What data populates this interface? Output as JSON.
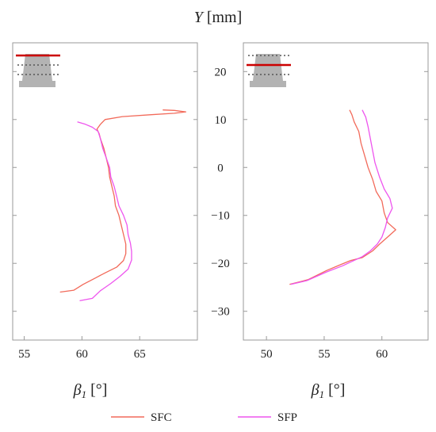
{
  "chart_data": [
    {
      "type": "line",
      "panel": "left",
      "xlabel_symbol": "β",
      "xlabel_sub": "1",
      "xlabel_unit": " [°]",
      "xlim": [
        54,
        70
      ],
      "ylim": [
        -36,
        26
      ],
      "x_ticks": [
        "55",
        "60",
        "65"
      ],
      "inset_marker": "top",
      "series": [
        {
          "name": "SFC",
          "color": "#f26a5a",
          "points": [
            [
              58.1,
              -26
            ],
            [
              59.3,
              -25.6
            ],
            [
              60.1,
              -24.4
            ],
            [
              61.2,
              -23
            ],
            [
              62.0,
              -22
            ],
            [
              63.0,
              -20.8
            ],
            [
              63.6,
              -19.4
            ],
            [
              63.8,
              -18
            ],
            [
              63.8,
              -16
            ],
            [
              63.6,
              -14
            ],
            [
              63.4,
              -12
            ],
            [
              63.2,
              -10
            ],
            [
              62.9,
              -8
            ],
            [
              62.8,
              -6
            ],
            [
              62.6,
              -4
            ],
            [
              62.4,
              -2
            ],
            [
              62.3,
              0
            ],
            [
              62.1,
              2
            ],
            [
              61.9,
              4
            ],
            [
              61.6,
              6
            ],
            [
              61.5,
              7
            ],
            [
              61.3,
              8
            ],
            [
              61.6,
              9
            ],
            [
              62.0,
              10
            ],
            [
              63.5,
              10.6
            ],
            [
              66.0,
              11
            ],
            [
              68.0,
              11.3
            ],
            [
              69.0,
              11.6
            ],
            [
              68.0,
              11.9
            ],
            [
              67.0,
              12
            ]
          ]
        },
        {
          "name": "SFP",
          "color": "#ee55ee",
          "points": [
            [
              59.8,
              -27.8
            ],
            [
              60.9,
              -27.3
            ],
            [
              61.6,
              -25.7
            ],
            [
              62.5,
              -24.2
            ],
            [
              63.3,
              -22.7
            ],
            [
              64.0,
              -21.2
            ],
            [
              64.3,
              -19.3
            ],
            [
              64.3,
              -17.5
            ],
            [
              64.2,
              -15.8
            ],
            [
              64.0,
              -14
            ],
            [
              63.9,
              -12
            ],
            [
              63.6,
              -10
            ],
            [
              63.2,
              -8
            ],
            [
              63.0,
              -6
            ],
            [
              62.8,
              -4
            ],
            [
              62.5,
              -2
            ],
            [
              62.4,
              0
            ],
            [
              62.1,
              2
            ],
            [
              61.8,
              4
            ],
            [
              61.6,
              6
            ],
            [
              61.4,
              7.5
            ],
            [
              60.9,
              8.4
            ],
            [
              60.3,
              9
            ],
            [
              59.6,
              9.5
            ]
          ]
        }
      ]
    },
    {
      "type": "line",
      "panel": "right",
      "xlabel_symbol": "β",
      "xlabel_sub": "1",
      "xlabel_unit": " [°]",
      "xlim": [
        48,
        64
      ],
      "ylim": [
        -36,
        26
      ],
      "x_ticks": [
        "50",
        "55",
        "60"
      ],
      "inset_marker": "middle",
      "series": [
        {
          "name": "SFC",
          "color": "#f26a5a",
          "points": [
            [
              52.0,
              -24.4
            ],
            [
              53.6,
              -23.4
            ],
            [
              55.2,
              -21.5
            ],
            [
              56.5,
              -20.2
            ],
            [
              57.3,
              -19.4
            ],
            [
              58.3,
              -18.8
            ],
            [
              59.2,
              -17.4
            ],
            [
              59.8,
              -16
            ],
            [
              60.5,
              -14.5
            ],
            [
              61.2,
              -13
            ],
            [
              60.5,
              -11.5
            ],
            [
              60.2,
              -9.5
            ],
            [
              60.0,
              -7
            ],
            [
              59.5,
              -5
            ],
            [
              59.2,
              -2.5
            ],
            [
              58.8,
              0
            ],
            [
              58.5,
              2.5
            ],
            [
              58.2,
              5
            ],
            [
              58.0,
              7.5
            ],
            [
              57.6,
              9.5
            ],
            [
              57.4,
              11
            ],
            [
              57.2,
              12
            ]
          ]
        },
        {
          "name": "SFP",
          "color": "#ee55ee",
          "points": [
            [
              52.1,
              -24.4
            ],
            [
              53.5,
              -23.6
            ],
            [
              55.2,
              -21.8
            ],
            [
              56.6,
              -20.5
            ],
            [
              57.5,
              -19.5
            ],
            [
              58.3,
              -18.6
            ],
            [
              59.0,
              -17.4
            ],
            [
              59.6,
              -16
            ],
            [
              60.0,
              -14.5
            ],
            [
              60.3,
              -12.5
            ],
            [
              60.5,
              -10.5
            ],
            [
              60.9,
              -8.5
            ],
            [
              60.7,
              -6.5
            ],
            [
              60.2,
              -4.5
            ],
            [
              59.8,
              -2
            ],
            [
              59.4,
              1
            ],
            [
              59.2,
              3.5
            ],
            [
              59.0,
              6
            ],
            [
              58.8,
              8.5
            ],
            [
              58.6,
              10.5
            ],
            [
              58.3,
              12
            ]
          ]
        }
      ]
    }
  ],
  "shared_axis": {
    "ylabel_symbol": "Y",
    "ylabel_unit": " [mm]",
    "y_ticks": [
      "20",
      "10",
      "0",
      "−10",
      "−20",
      "−30"
    ]
  },
  "legend": [
    {
      "label": "SFC",
      "color": "#f26a5a"
    },
    {
      "label": "SFP",
      "color": "#ee55ee"
    }
  ],
  "inset": {
    "body_color": "#b3b3b3",
    "dotted_color": "#555555",
    "marker_color": "#cc0000"
  }
}
